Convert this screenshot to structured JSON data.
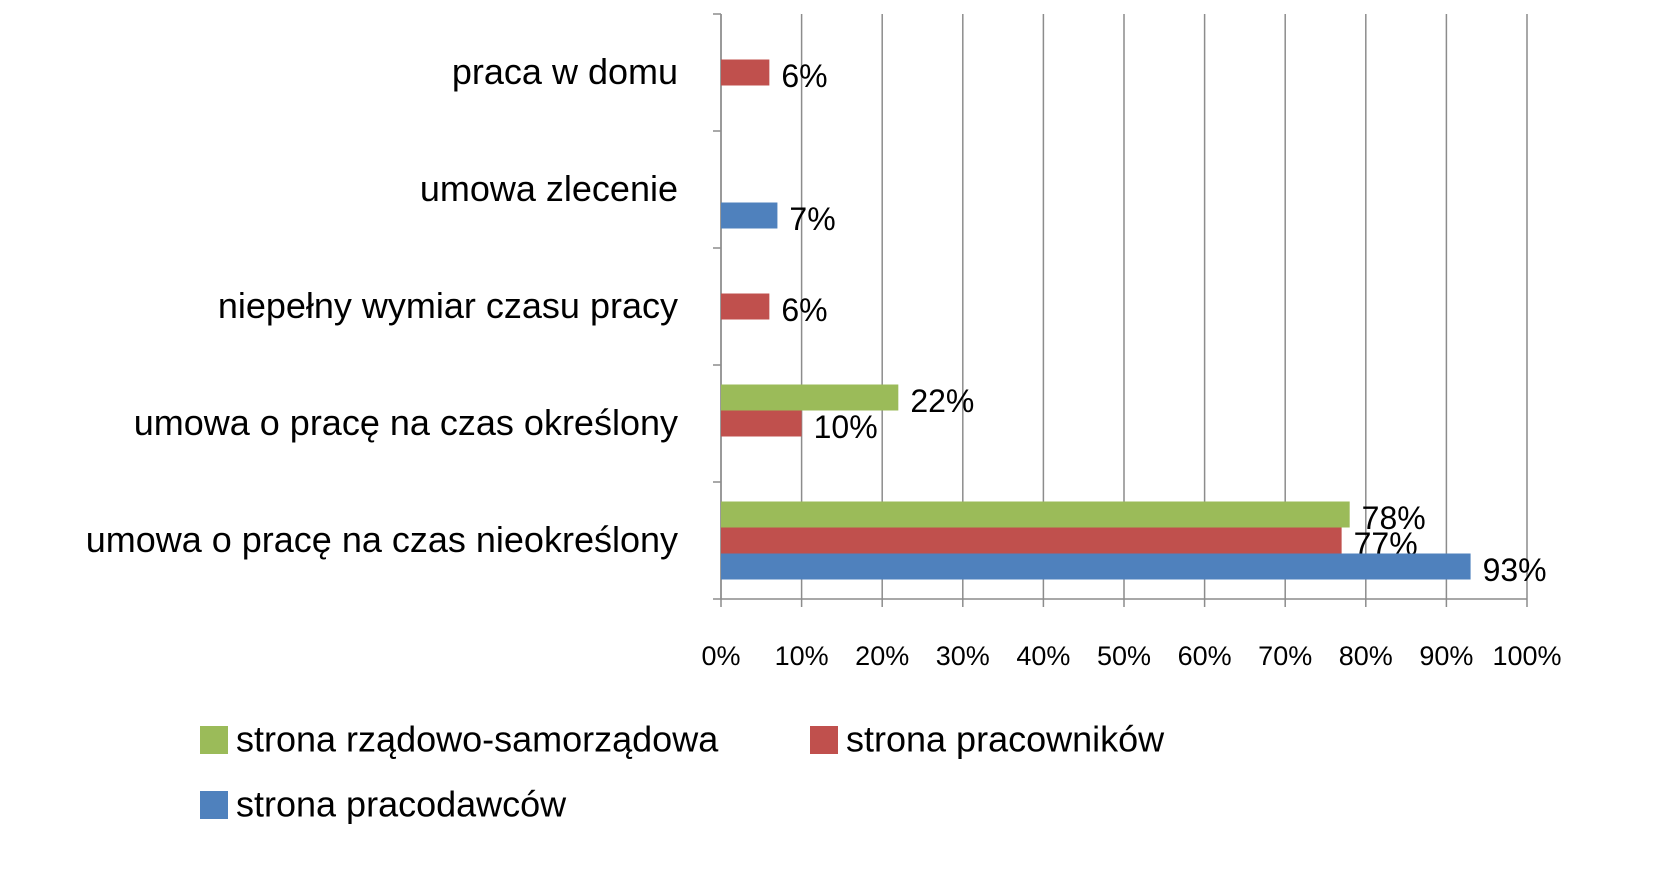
{
  "chart_data": {
    "type": "bar",
    "orientation": "horizontal",
    "categories": [
      "umowa o pracę na czas nieokreślony",
      "umowa o pracę na czas określony",
      "niepełny wymiar czasu pracy",
      "umowa zlecenie",
      "praca w domu"
    ],
    "series": [
      {
        "name": "strona rządowo-samorządowa",
        "color": "#9bbb59",
        "values": [
          78,
          22,
          null,
          null,
          null
        ],
        "value_labels": [
          "78%",
          "22%",
          null,
          null,
          null
        ]
      },
      {
        "name": "strona pracowników",
        "color": "#c0504d",
        "values": [
          77,
          10,
          6,
          null,
          6
        ],
        "value_labels": [
          "77%",
          "10%",
          "6%",
          null,
          "6%"
        ]
      },
      {
        "name": "strona pracodawców",
        "color": "#4f81bd",
        "values": [
          93,
          null,
          null,
          7,
          null
        ],
        "value_labels": [
          "93%",
          null,
          null,
          "7%",
          null
        ]
      }
    ],
    "xlim": [
      0,
      100
    ],
    "xticks": [
      {
        "value": 0,
        "label": "0%"
      },
      {
        "value": 10,
        "label": "10%"
      },
      {
        "value": 20,
        "label": "20%"
      },
      {
        "value": 30,
        "label": "30%"
      },
      {
        "value": 40,
        "label": "40%"
      },
      {
        "value": 50,
        "label": "50%"
      },
      {
        "value": 60,
        "label": "60%"
      },
      {
        "value": 70,
        "label": "70%"
      },
      {
        "value": 80,
        "label": "80%"
      },
      {
        "value": 90,
        "label": "90%"
      },
      {
        "value": 100,
        "label": "100%"
      }
    ],
    "grid": true,
    "legend": "bottom"
  }
}
